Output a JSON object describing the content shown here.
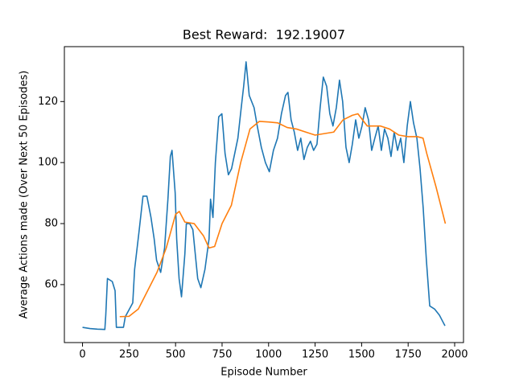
{
  "chart_data": {
    "type": "line",
    "title": "Best Reward:  192.19007",
    "x_label": "Episode Number",
    "y_label": "Average Actions made (Over Next 50 Episodes)",
    "xlim": [
      -97.5,
      2047.5
    ],
    "xticks": [
      0,
      250,
      500,
      750,
      1000,
      1250,
      1500,
      1750,
      2000
    ],
    "ylim": [
      41,
      138
    ],
    "yticks": [
      60,
      80,
      100,
      120
    ],
    "grid": false,
    "series": [
      {
        "name": "Average actions",
        "color": "#1f77b4",
        "x": [
          0,
          40,
          80,
          120,
          125,
          134,
          160,
          175,
          182,
          220,
          230,
          270,
          280,
          303,
          325,
          346,
          368,
          385,
          398,
          420,
          441,
          459,
          472,
          481,
          498,
          506,
          519,
          532,
          550,
          558,
          576,
          593,
          606,
          619,
          636,
          658,
          680,
          688,
          701,
          714,
          732,
          749,
          766,
          784,
          801,
          818,
          835,
          853,
          866,
          879,
          896,
          922,
          939,
          961,
          983,
          1004,
          1026,
          1048,
          1069,
          1091,
          1104,
          1121,
          1138,
          1156,
          1173,
          1190,
          1208,
          1225,
          1242,
          1260,
          1277,
          1294,
          1312,
          1329,
          1346,
          1364,
          1381,
          1398,
          1416,
          1433,
          1450,
          1468,
          1485,
          1502,
          1519,
          1537,
          1554,
          1571,
          1589,
          1606,
          1623,
          1641,
          1658,
          1675,
          1693,
          1710,
          1727,
          1745,
          1762,
          1779,
          1797,
          1814,
          1831,
          1848,
          1866,
          1892,
          1918,
          1935,
          1948
        ],
        "values": [
          46,
          45.6,
          45.4,
          45.3,
          50,
          62,
          61,
          58,
          46,
          46,
          49.5,
          54,
          65,
          77,
          89,
          89,
          82,
          75,
          68,
          64,
          72,
          88,
          102,
          104,
          90,
          75,
          62,
          56,
          70,
          80,
          80,
          78,
          70,
          62,
          59,
          65,
          75,
          88,
          82,
          100,
          115,
          116,
          103,
          96,
          98,
          103,
          108,
          118,
          125,
          133,
          122,
          118,
          112,
          105,
          100,
          97,
          104,
          108,
          116,
          122,
          123,
          114,
          110,
          104,
          108,
          101,
          105,
          107,
          104,
          106,
          118,
          128,
          125,
          116,
          112,
          118,
          127,
          120,
          105,
          100,
          106,
          114,
          108,
          112,
          118,
          114,
          104,
          108,
          112,
          104,
          111,
          108,
          102,
          110,
          104,
          108,
          100,
          112,
          120,
          113,
          108,
          98,
          85,
          68,
          53,
          52,
          50,
          48,
          46.5
        ]
      },
      {
        "name": "Smoothed",
        "color": "#ff7f0e",
        "x": [
          200,
          250,
          300,
          350,
          400,
          450,
          500,
          520,
          550,
          600,
          650,
          680,
          710,
          750,
          800,
          850,
          900,
          950,
          1000,
          1050,
          1100,
          1150,
          1200,
          1250,
          1300,
          1350,
          1400,
          1450,
          1480,
          1530,
          1600,
          1650,
          1700,
          1750,
          1800,
          1830,
          1850,
          1900,
          1950
        ],
        "values": [
          49.5,
          49.6,
          52,
          58,
          64,
          72,
          83,
          84,
          80.5,
          80,
          76,
          72,
          72.5,
          80,
          86,
          100,
          111,
          113.5,
          113.3,
          113,
          111.5,
          111,
          110,
          109,
          109.5,
          110,
          114,
          115.5,
          116,
          112,
          112,
          111,
          109,
          108.5,
          108.5,
          108,
          103,
          92,
          80
        ]
      }
    ]
  }
}
